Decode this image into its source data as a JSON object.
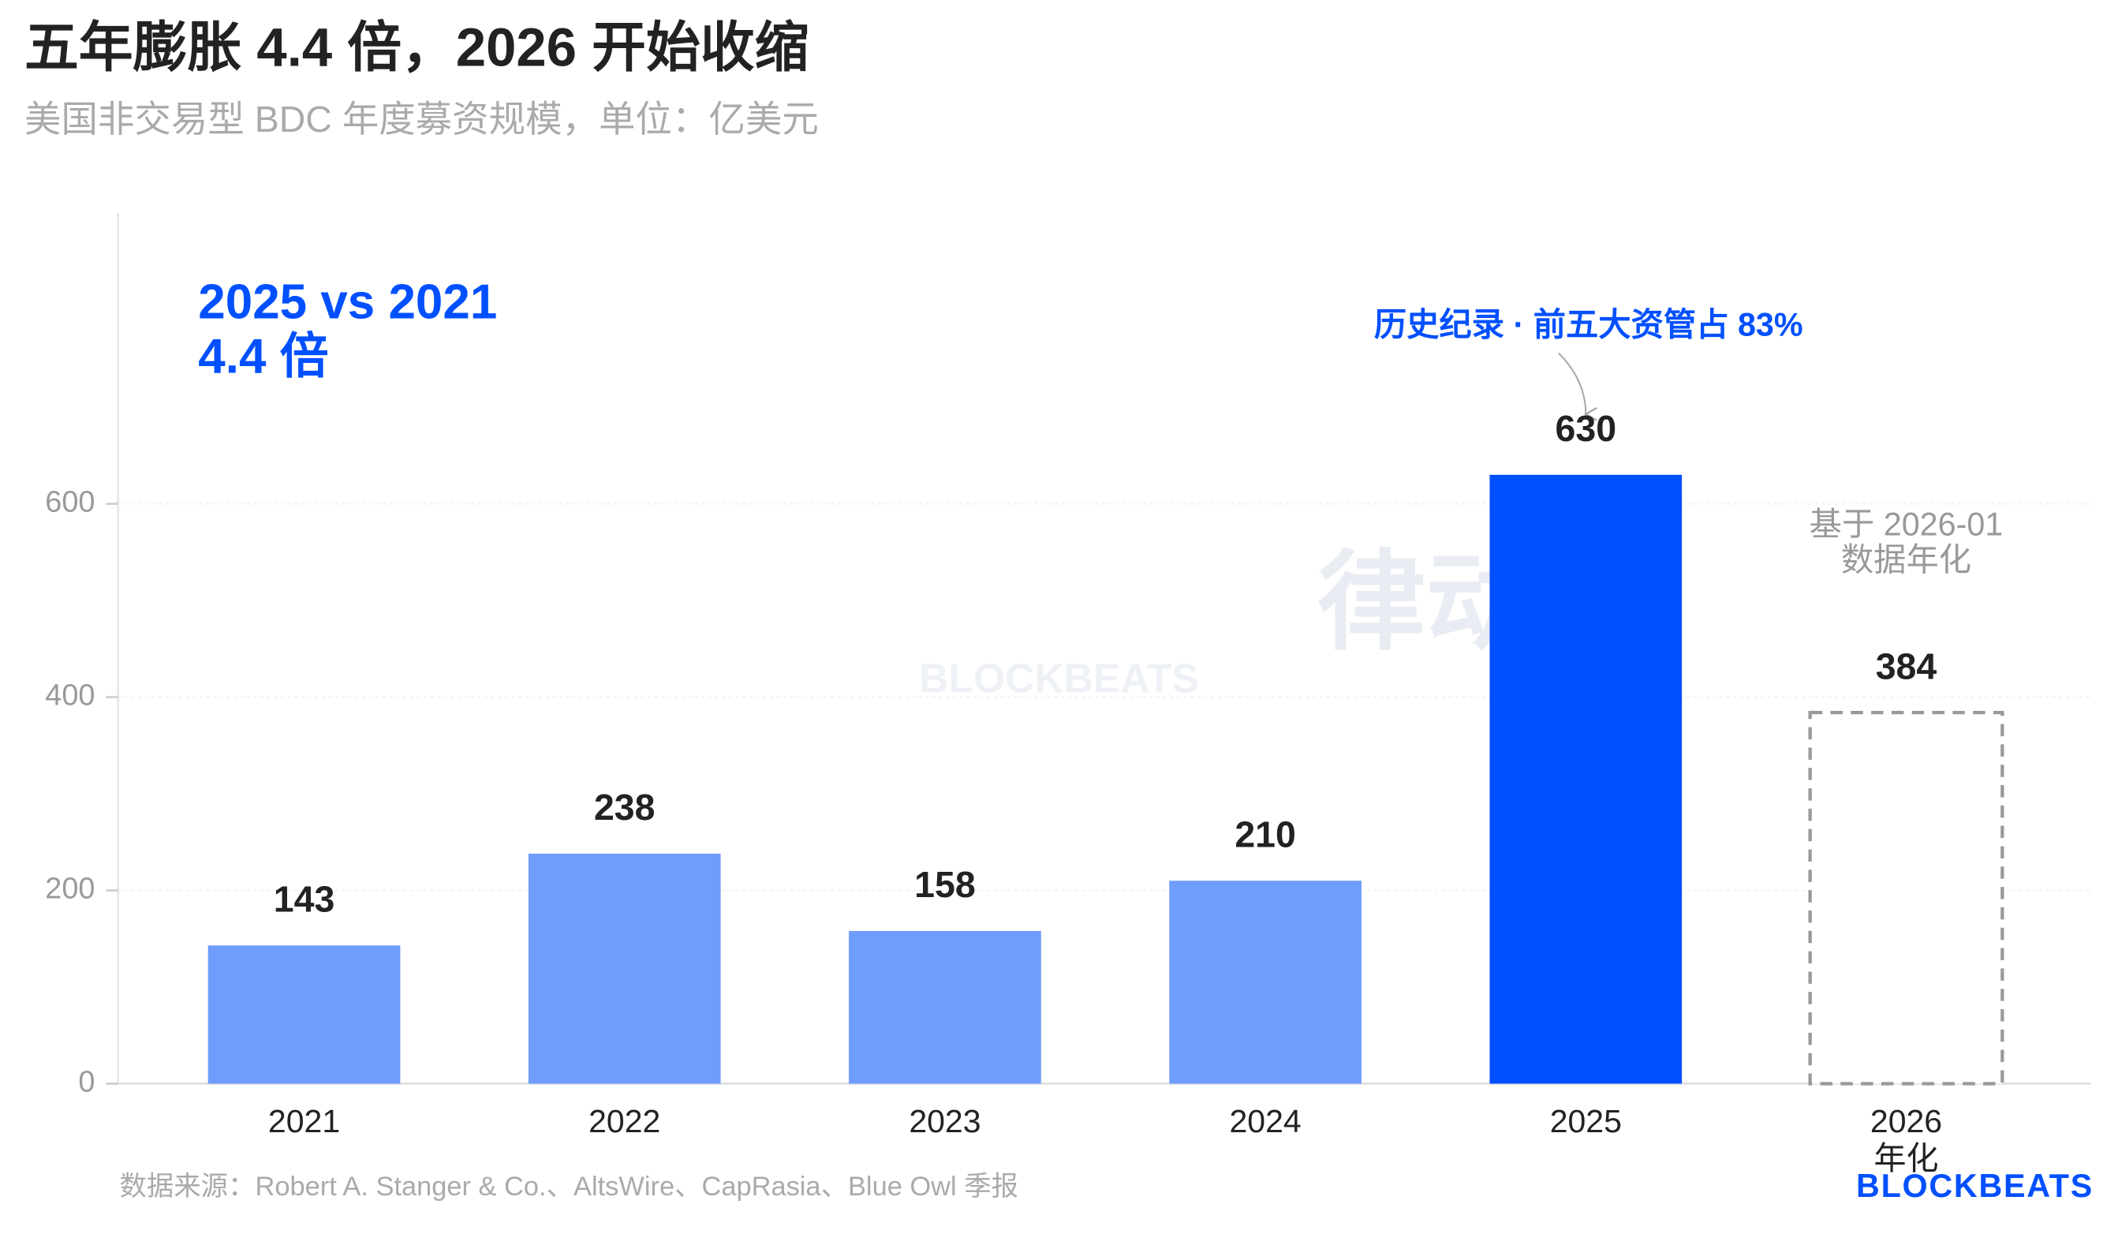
{
  "chart_data": {
    "type": "bar",
    "title": "五年膨胀 4.4 倍，2026 开始收缩",
    "subtitle": "美国非交易型 BDC 年度募资规模，单位：亿美元",
    "categories": [
      "2021",
      "2022",
      "2023",
      "2024",
      "2025",
      "2026\n年化"
    ],
    "values": [
      143,
      238,
      158,
      210,
      630,
      384
    ],
    "colors": [
      "#6f9dfb",
      "#6f9dfb",
      "#6f9dfb",
      "#6f9dfb",
      "#0050ff",
      "#999999"
    ],
    "bar_styles": [
      "solid",
      "solid",
      "solid",
      "solid",
      "solid",
      "dashed"
    ],
    "ylim": [
      0,
      900
    ],
    "yticks": [
      0,
      200,
      400,
      600
    ],
    "grid": true,
    "highlight": [
      "2025 vs 2021",
      "4.4 倍"
    ],
    "annotation": "历史纪录 · 前五大资管占 83%",
    "note": [
      "基于 2026-01",
      "数据年化"
    ],
    "watermark": [
      "律动",
      "BLOCKBEATS"
    ],
    "source": "数据来源：Robert A. Stanger & Co.、AltsWire、CapRasia、Blue Owl 季报",
    "logo": "BLOCKBEATS"
  }
}
